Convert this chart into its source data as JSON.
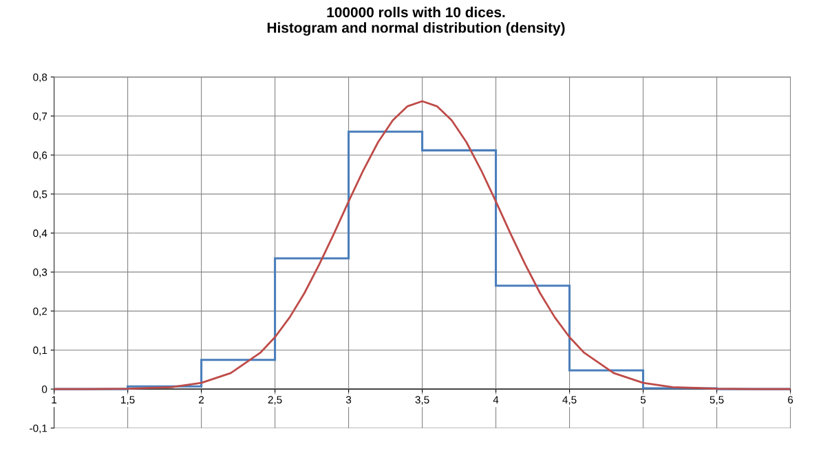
{
  "chart_data": {
    "type": "histogram",
    "title": "100000 rolls with 10 dices.\nHistogram and normal distribution (density)",
    "bins": [
      1,
      1.5,
      2,
      2.5,
      3,
      3.5,
      4,
      4.5,
      5,
      5.5,
      6
    ],
    "series": [
      {
        "color": "#4a7ebb",
        "values": [
          0,
          0.007,
          0.075,
          0.335,
          0.66,
          0.612,
          0.265,
          0.048,
          0.002,
          0
        ]
      },
      {
        "type": "line",
        "color": "#be4b48",
        "x": [
          1,
          1.25,
          1.5,
          1.8,
          2,
          2.2,
          2.4,
          2.5,
          2.6,
          2.7,
          2.8,
          2.9,
          3,
          3.1,
          3.2,
          3.3,
          3.4,
          3.5,
          3.6,
          3.7,
          3.8,
          3.9,
          4,
          4.1,
          4.2,
          4.3,
          4.4,
          4.5,
          4.6,
          4.8,
          5,
          5.2,
          5.5,
          5.75,
          6
        ],
        "values": [
          0,
          0,
          0.001,
          0.005,
          0.016,
          0.041,
          0.093,
          0.133,
          0.184,
          0.246,
          0.319,
          0.398,
          0.481,
          0.561,
          0.633,
          0.689,
          0.725,
          0.738,
          0.725,
          0.689,
          0.633,
          0.561,
          0.481,
          0.398,
          0.319,
          0.246,
          0.184,
          0.133,
          0.093,
          0.041,
          0.016,
          0.005,
          0.001,
          0,
          0
        ]
      }
    ],
    "xlim": [
      1,
      6
    ],
    "xticks": [
      1,
      {
        "value": 1.5,
        "label": "1,5"
      },
      2,
      {
        "value": 2.5,
        "label": "2,5"
      },
      3,
      {
        "value": 3.5,
        "label": "3,5"
      },
      4,
      {
        "value": 4.5,
        "label": "4,5"
      },
      5,
      {
        "value": 5.5,
        "label": "5,5"
      },
      6
    ],
    "ylim": [
      -0.1,
      0.8
    ],
    "yticks": [
      {
        "value": -0.1,
        "label": "-0,1"
      },
      0,
      {
        "value": 0.1,
        "label": "0,1"
      },
      {
        "value": 0.2,
        "label": "0,2"
      },
      {
        "value": 0.3,
        "label": "0,3"
      },
      {
        "value": 0.4,
        "label": "0,4"
      },
      {
        "value": 0.5,
        "label": "0,5"
      },
      {
        "value": 0.6,
        "label": "0,6"
      },
      {
        "value": 0.7,
        "label": "0,7"
      },
      {
        "value": 0.8,
        "label": "0,8"
      }
    ],
    "grid": true,
    "marker": "none",
    "line_style": "solid"
  }
}
